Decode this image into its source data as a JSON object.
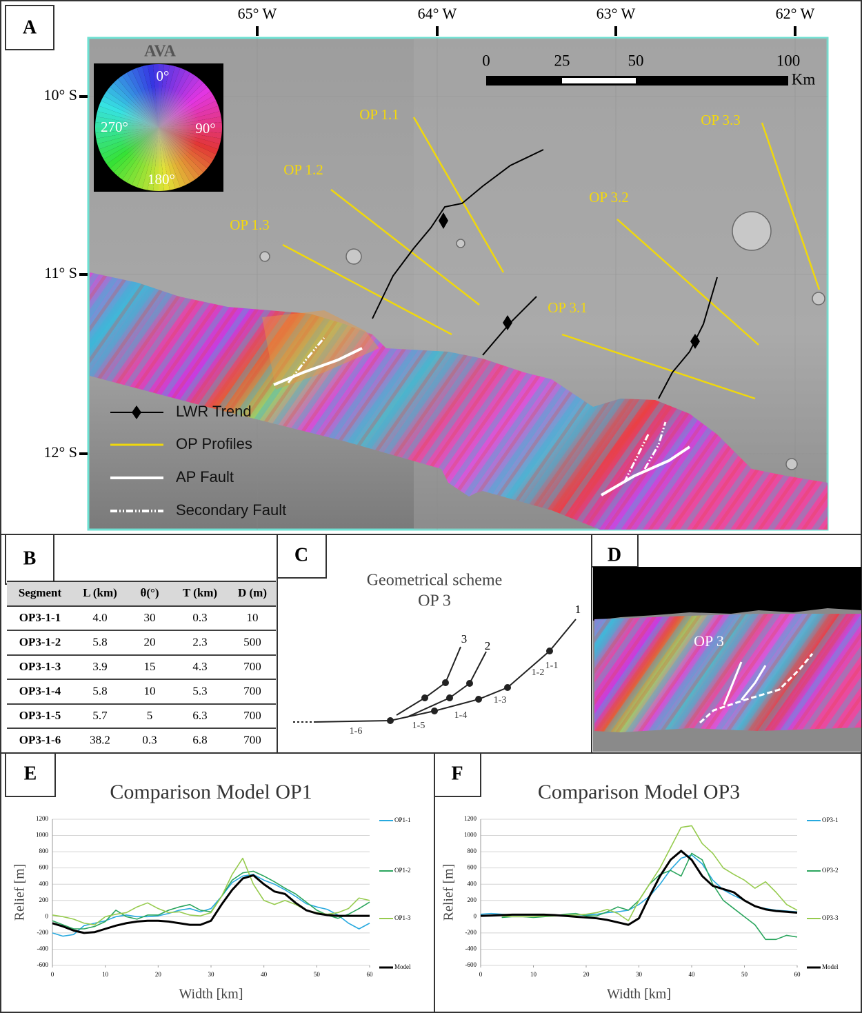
{
  "panel_a": {
    "label": "A",
    "longitudes": [
      "65° W",
      "64° W",
      "63° W",
      "62° W"
    ],
    "latitudes": [
      "10° S",
      "11° S",
      "12° S"
    ],
    "ava_title": "AVA",
    "ava_labels": [
      "0°",
      "90°",
      "180°",
      "270°"
    ],
    "scale_labels": [
      "0",
      "25",
      "50",
      "100"
    ],
    "scale_unit": "Km",
    "profiles": [
      "OP 1.1",
      "OP 1.2",
      "OP 1.3",
      "OP 3.1",
      "OP 3.2",
      "OP 3.3"
    ],
    "legend": [
      "LWR Trend",
      "OP Profiles",
      "AP Fault",
      "Secondary Fault"
    ]
  },
  "panel_b": {
    "label": "B",
    "headers": [
      "Segment",
      "L (km)",
      "θ(°)",
      "T (km)",
      "D (m)"
    ],
    "rows": [
      [
        "OP3-1-1",
        "4.0",
        "30",
        "0.3",
        "10"
      ],
      [
        "OP3-1-2",
        "5.8",
        "20",
        "2.3",
        "500"
      ],
      [
        "OP3-1-3",
        "3.9",
        "15",
        "4.3",
        "700"
      ],
      [
        "OP3-1-4",
        "5.8",
        "10",
        "5.3",
        "700"
      ],
      [
        "OP3-1-5",
        "5.7",
        "5",
        "6.3",
        "700"
      ],
      [
        "OP3-1-6",
        "38.2",
        "0.3",
        "6.8",
        "700"
      ]
    ]
  },
  "panel_c": {
    "label": "C",
    "title": "Geometrical scheme",
    "subtitle": "OP 3",
    "branches": [
      "1",
      "2",
      "3"
    ],
    "segments": [
      "1-1",
      "1-2",
      "1-3",
      "1-4",
      "1-5",
      "1-6"
    ]
  },
  "panel_d": {
    "label": "D",
    "annotation": "OP 3"
  },
  "chart_data": [
    {
      "type": "line",
      "label": "E",
      "title": "Comparison Model OP1",
      "xlabel": "Width [km]",
      "ylabel": "Relief [m]",
      "x": [
        0,
        2,
        4,
        6,
        8,
        10,
        12,
        14,
        16,
        18,
        20,
        22,
        24,
        26,
        28,
        30,
        32,
        34,
        36,
        38,
        40,
        42,
        44,
        46,
        48,
        50,
        52,
        54,
        56,
        58,
        60
      ],
      "xlim": [
        0,
        60
      ],
      "xticks": [
        0,
        10,
        20,
        30,
        40,
        50,
        60
      ],
      "ylim": [
        -600,
        1200
      ],
      "yticks": [
        -600,
        -400,
        -200,
        0,
        200,
        400,
        600,
        800,
        1000,
        1200
      ],
      "grid": true,
      "series": [
        {
          "name": "OP1-1",
          "color": "#27a9df",
          "values": [
            -200,
            -240,
            -220,
            -110,
            -80,
            -50,
            0,
            20,
            0,
            0,
            10,
            40,
            80,
            100,
            60,
            100,
            250,
            420,
            500,
            520,
            450,
            400,
            330,
            250,
            160,
            120,
            90,
            20,
            -80,
            -150,
            -80
          ]
        },
        {
          "name": "OP1-2",
          "color": "#2aa55d",
          "values": [
            -50,
            -100,
            -150,
            -150,
            -120,
            -60,
            80,
            0,
            -30,
            20,
            20,
            80,
            120,
            150,
            80,
            60,
            250,
            450,
            540,
            560,
            500,
            430,
            350,
            280,
            180,
            80,
            20,
            -20,
            30,
            100,
            180
          ]
        },
        {
          "name": "OP1-3",
          "color": "#96cb4e",
          "values": [
            20,
            0,
            -30,
            -80,
            -100,
            0,
            30,
            50,
            120,
            170,
            100,
            50,
            60,
            20,
            10,
            50,
            250,
            520,
            720,
            400,
            200,
            150,
            200,
            150,
            80,
            50,
            30,
            50,
            100,
            230,
            200
          ]
        },
        {
          "name": "Model",
          "color": "#000000",
          "values": [
            -80,
            -120,
            -170,
            -200,
            -190,
            -150,
            -110,
            -80,
            -60,
            -50,
            -50,
            -60,
            -80,
            -100,
            -100,
            -50,
            150,
            330,
            470,
            510,
            400,
            310,
            280,
            170,
            80,
            40,
            20,
            10,
            10,
            10,
            10
          ]
        }
      ]
    },
    {
      "type": "line",
      "label": "F",
      "title": "Comparison Model OP3",
      "xlabel": "Width [km]",
      "ylabel": "Relief [m]",
      "x": [
        0,
        2,
        4,
        6,
        8,
        10,
        12,
        14,
        16,
        18,
        20,
        22,
        24,
        26,
        28,
        30,
        32,
        34,
        36,
        38,
        40,
        42,
        44,
        46,
        48,
        50,
        52,
        54,
        56,
        58,
        60
      ],
      "xlim": [
        0,
        60
      ],
      "xticks": [
        0,
        10,
        20,
        30,
        40,
        50,
        60
      ],
      "ylim": [
        -600,
        1200
      ],
      "yticks": [
        -600,
        -400,
        -200,
        0,
        200,
        400,
        600,
        800,
        1000,
        1200
      ],
      "grid": true,
      "series": [
        {
          "name": "OP3-1",
          "color": "#27a9df",
          "values": [
            30,
            40,
            30,
            20,
            20,
            20,
            20,
            20,
            20,
            20,
            20,
            30,
            50,
            60,
            80,
            150,
            250,
            400,
            580,
            720,
            760,
            650,
            450,
            330,
            260,
            200,
            130,
            100,
            80,
            70,
            60
          ]
        },
        {
          "name": "OP3-2",
          "color": "#2aa55d",
          "values": [
            null,
            null,
            -10,
            0,
            0,
            -10,
            0,
            10,
            30,
            40,
            10,
            10,
            60,
            120,
            80,
            200,
            400,
            520,
            570,
            500,
            780,
            700,
            400,
            200,
            100,
            0,
            -100,
            -280,
            -280,
            -230,
            -250
          ]
        },
        {
          "name": "OP3-3",
          "color": "#96cb4e",
          "values": [
            null,
            null,
            10,
            0,
            0,
            0,
            10,
            10,
            20,
            20,
            30,
            50,
            90,
            40,
            -50,
            200,
            400,
            600,
            850,
            1100,
            1120,
            900,
            780,
            600,
            520,
            450,
            350,
            430,
            300,
            150,
            80
          ]
        },
        {
          "name": "Model",
          "color": "#000000",
          "values": [
            10,
            15,
            20,
            25,
            25,
            25,
            25,
            20,
            10,
            0,
            -10,
            -20,
            -40,
            -70,
            -100,
            -20,
            250,
            500,
            700,
            810,
            700,
            500,
            380,
            340,
            300,
            200,
            130,
            90,
            70,
            60,
            50
          ]
        }
      ]
    }
  ]
}
